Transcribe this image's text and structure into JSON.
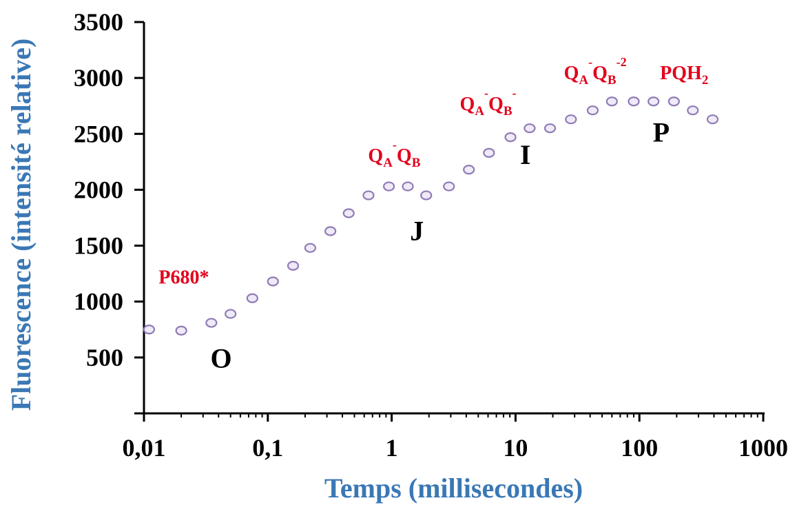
{
  "colors": {
    "axis_title": "#3a78b5",
    "annotation_red": "#e3001b",
    "annotation_black": "#000000",
    "marker_fill": "#efeaf7",
    "marker_stroke": "#8f7ab5"
  },
  "chart_data": {
    "type": "scatter",
    "xscale": "log",
    "xlim": [
      0.01,
      1000
    ],
    "ylim": [
      0,
      3500
    ],
    "xlabel": "Temps (millisecondes)",
    "ylabel": "Fluorescence (intensité relative)",
    "x_ticks": [
      {
        "value": 0.01,
        "label": "0,01"
      },
      {
        "value": 0.1,
        "label": "0,1"
      },
      {
        "value": 1,
        "label": "1"
      },
      {
        "value": 10,
        "label": "10"
      },
      {
        "value": 100,
        "label": "100"
      },
      {
        "value": 1000,
        "label": "1000"
      }
    ],
    "y_ticks": [
      {
        "value": 500,
        "label": "500"
      },
      {
        "value": 1000,
        "label": "1000"
      },
      {
        "value": 1500,
        "label": "1500"
      },
      {
        "value": 2000,
        "label": "2000"
      },
      {
        "value": 2500,
        "label": "2500"
      },
      {
        "value": 3000,
        "label": "3000"
      },
      {
        "value": 3500,
        "label": "3500"
      }
    ],
    "grid": false,
    "x": [
      0.011,
      0.02,
      0.035,
      0.05,
      0.075,
      0.11,
      0.16,
      0.22,
      0.32,
      0.45,
      0.65,
      0.95,
      1.35,
      1.9,
      2.9,
      4.2,
      6.1,
      9.1,
      13,
      19,
      28,
      42,
      60,
      90,
      130,
      190,
      270,
      390
    ],
    "y": [
      750,
      740,
      810,
      890,
      1030,
      1180,
      1320,
      1480,
      1630,
      1790,
      1950,
      2030,
      2030,
      1950,
      2030,
      2180,
      2330,
      2470,
      2550,
      2550,
      2630,
      2710,
      2790,
      2790,
      2790,
      2790,
      2710,
      2630
    ],
    "annotations": [
      {
        "kind": "red",
        "x": 0.021,
        "y": 1160,
        "parts": [
          {
            "t": "P680*"
          }
        ]
      },
      {
        "kind": "red",
        "x": 1.05,
        "y": 2250,
        "parts": [
          {
            "t": "Q"
          },
          {
            "t": "A",
            "style": "sub"
          },
          {
            "t": "-",
            "style": "sup"
          },
          {
            "t": "Q"
          },
          {
            "t": "B",
            "style": "sub"
          }
        ]
      },
      {
        "kind": "red",
        "x": 6.0,
        "y": 2710,
        "parts": [
          {
            "t": "Q"
          },
          {
            "t": "A",
            "style": "sub"
          },
          {
            "t": "-",
            "style": "sup"
          },
          {
            "t": "Q"
          },
          {
            "t": "B",
            "style": "sub"
          },
          {
            "t": "-",
            "style": "sup"
          }
        ]
      },
      {
        "kind": "red",
        "x": 44,
        "y": 2990,
        "parts": [
          {
            "t": "Q"
          },
          {
            "t": "A",
            "style": "sub"
          },
          {
            "t": "-",
            "style": "sup"
          },
          {
            "t": "Q"
          },
          {
            "t": "B",
            "style": "sub"
          },
          {
            "t": "-2",
            "style": "sup"
          }
        ]
      },
      {
        "kind": "red",
        "x": 230,
        "y": 2990,
        "parts": [
          {
            "t": "PQH"
          },
          {
            "t": "2",
            "style": "sub"
          }
        ]
      },
      {
        "kind": "black",
        "x": 0.042,
        "y": 410,
        "parts": [
          {
            "t": "O"
          }
        ]
      },
      {
        "kind": "black",
        "x": 1.6,
        "y": 1550,
        "parts": [
          {
            "t": "J"
          }
        ]
      },
      {
        "kind": "black",
        "x": 12,
        "y": 2230,
        "parts": [
          {
            "t": "I"
          }
        ]
      },
      {
        "kind": "black",
        "x": 150,
        "y": 2430,
        "parts": [
          {
            "t": "P"
          }
        ]
      }
    ]
  }
}
